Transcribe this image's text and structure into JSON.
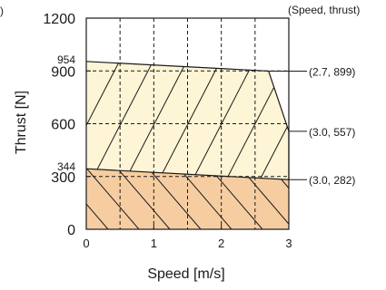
{
  "chart_data": {
    "type": "area",
    "xlabel": "Speed [m/s]",
    "ylabel": "Thrust [N]",
    "xlim": [
      0,
      3
    ],
    "ylim": [
      0,
      1200
    ],
    "x_ticks": [
      "0",
      "1",
      "2",
      "3"
    ],
    "y_ticks": [
      "0",
      "300",
      "600",
      "900",
      "1200"
    ],
    "y_extra_ticks": [
      "344",
      "954"
    ],
    "grid": "dashed",
    "legend_header": "(Speed, thrust)",
    "left_edge_label": ")",
    "annotations": [
      "(2.7, 899)",
      "(3.0, 557)",
      "(3.0, 282)"
    ],
    "series": [
      {
        "name": "",
        "color": "#fdf5d6",
        "hatch": "forward",
        "points": [
          [
            0,
            954
          ],
          [
            2.7,
            899
          ],
          [
            3.0,
            557
          ],
          [
            3.0,
            282
          ],
          [
            0,
            344
          ]
        ]
      },
      {
        "name": "",
        "color": "#f6cda1",
        "hatch": "backward",
        "points": [
          [
            0,
            344
          ],
          [
            3.0,
            282
          ],
          [
            3.0,
            0
          ],
          [
            0,
            0
          ]
        ]
      }
    ],
    "colors": {
      "upper_region": "#fdf5d6",
      "lower_region": "#f6cda1",
      "line": "#1a1a1a"
    }
  }
}
